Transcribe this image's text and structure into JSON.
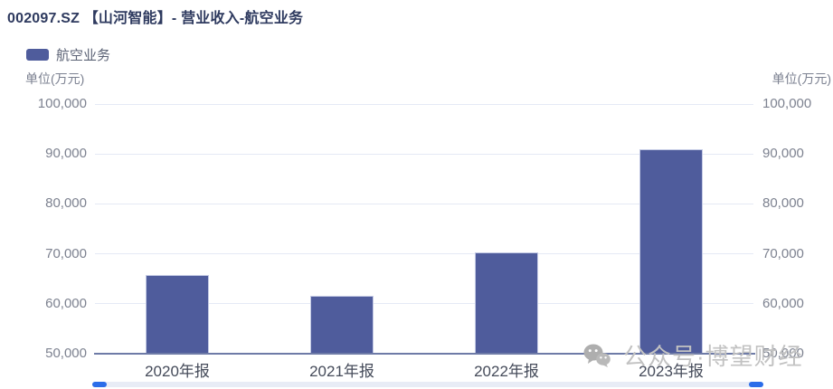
{
  "header": {
    "title": "002097.SZ 【山河智能】- 营业收入-航空业务"
  },
  "legend": {
    "label": "航空业务",
    "swatch_color": "#4f5c9c"
  },
  "axis_units": {
    "left": "单位(万元)",
    "right": "单位(万元)"
  },
  "chart_data": {
    "type": "bar",
    "title": "002097.SZ 【山河智能】- 营业收入-航空业务",
    "series_name": "航空业务",
    "categories": [
      "2020年报",
      "2021年报",
      "2022年报",
      "2023年报"
    ],
    "values": [
      65700,
      61600,
      70200,
      90900
    ],
    "unit": "万元",
    "xlabel": "",
    "ylabel": "单位(万元)",
    "ylim": [
      50000,
      100000
    ],
    "y_tick_step": 10000,
    "y_tick_labels": [
      "50,000",
      "60,000",
      "70,000",
      "80,000",
      "90,000",
      "100,000"
    ],
    "grid": true,
    "legend_position": "top-left",
    "bar_color": "#4f5c9c"
  },
  "watermark": {
    "icon": "wechat-icon",
    "text": "公众号·博望财经"
  },
  "colors": {
    "bar": "#4f5c9c",
    "bar_border": "#c3c9e4",
    "axis_line": "#6e7ba7",
    "gridline": "#e5e9f5",
    "datazoom_handle": "#2b6de9",
    "datazoom_track": "#e8ecf6",
    "title_text": "#2e3a5f",
    "watermark_text": "#c2c2c2"
  }
}
